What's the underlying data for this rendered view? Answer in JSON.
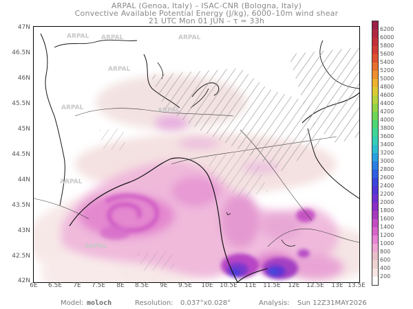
{
  "header": {
    "line1": "ARPAL (Genoa, Italy)  –  ISAC-CNR (Bologna, Italy)",
    "line2": "Convective Available Potential Energy (J/kg), 6000–10m wind shear",
    "line3": "21 UTC Mon 01 JUN  –  τ = 33h"
  },
  "map": {
    "lat_labels": [
      "47N",
      "46.5N",
      "46N",
      "45.5N",
      "45N",
      "44.5N",
      "44N",
      "43.5N",
      "43N",
      "42.5N",
      "42N"
    ],
    "lon_labels": [
      "6E",
      "6.5E",
      "7E",
      "7.5E",
      "8E",
      "8.5E",
      "9E",
      "9.5E",
      "10E",
      "10.5E",
      "11E",
      "11.5E",
      "12E",
      "12.5E",
      "13E",
      "13.5E"
    ],
    "lat_range": [
      42,
      47
    ],
    "lon_range": [
      6,
      13.5
    ],
    "watermark": "ARPAL"
  },
  "colorbar": {
    "levels": [
      "200",
      "400",
      "600",
      "800",
      "1000",
      "1200",
      "1400",
      "1600",
      "1800",
      "2000",
      "2200",
      "2400",
      "2600",
      "2800",
      "3000",
      "3200",
      "3400",
      "3600",
      "3800",
      "4000",
      "4200",
      "4400",
      "4600",
      "4800",
      "5000",
      "5200",
      "5400",
      "5600",
      "5800",
      "6000",
      "6200"
    ],
    "colors": [
      "#ffffff",
      "#f7e6e3",
      "#ecd3cf",
      "#e8bfc6",
      "#eea6d3",
      "#e884d4",
      "#d765c9",
      "#c44cc3",
      "#a63bbe",
      "#8b2fc6",
      "#6f2fd0",
      "#4f34d6",
      "#3a45dc",
      "#2f5fe0",
      "#2b7fe2",
      "#2aa0df",
      "#2ebdd0",
      "#34cfb5",
      "#3fd696",
      "#4fd774",
      "#6cd656",
      "#91d445",
      "#b8d33c",
      "#dcca33",
      "#edb02f",
      "#ed8f2f",
      "#e8702f",
      "#df5231",
      "#d33c35",
      "#c22f3a",
      "#b02641",
      "#9b2045"
    ]
  },
  "footer": {
    "model_label": "Model:",
    "model_value": "moloch",
    "resolution_label": "Resolution:",
    "resolution_value": "0.037°x0.028°",
    "analysis_label": "Analysis:",
    "analysis_value": "Sun 12Z31MAY2026"
  }
}
